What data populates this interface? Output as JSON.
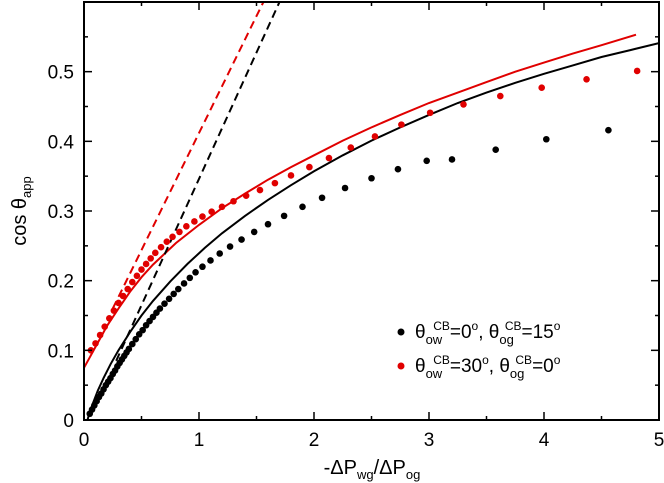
{
  "chart_data": {
    "type": "scatter",
    "xlabel": "-ΔP_wg/ΔP_og",
    "ylabel": "cos θ_app",
    "xlim": [
      0,
      5
    ],
    "ylim": [
      0,
      0.6
    ],
    "xticks": [
      0,
      1,
      2,
      3,
      4,
      5
    ],
    "yticks": [
      0,
      0.1,
      0.2,
      0.3,
      0.4,
      0.5
    ],
    "xtick_labels": [
      "0",
      "1",
      "2",
      "3",
      "4",
      "5"
    ],
    "ytick_labels": [
      "0",
      "0.1",
      "0.2",
      "0.3",
      "0.4",
      "0.5"
    ],
    "grid": false,
    "legend_position": "bottom-right",
    "series": [
      {
        "name": "θ_ow^CB=0°, θ_og^CB=15°",
        "kind": "points",
        "color": "#000000",
        "x": [
          0.05,
          0.07,
          0.09,
          0.11,
          0.13,
          0.15,
          0.17,
          0.19,
          0.21,
          0.23,
          0.25,
          0.27,
          0.29,
          0.31,
          0.33,
          0.35,
          0.37,
          0.39,
          0.42,
          0.45,
          0.48,
          0.51,
          0.54,
          0.57,
          0.6,
          0.63,
          0.66,
          0.7,
          0.74,
          0.78,
          0.82,
          0.87,
          0.92,
          0.97,
          1.03,
          1.1,
          1.18,
          1.27,
          1.37,
          1.48,
          1.6,
          1.74,
          1.9,
          2.07,
          2.27,
          2.5,
          2.73,
          2.98,
          3.2,
          3.58,
          4.02,
          4.56
        ],
        "y": [
          0.009,
          0.015,
          0.021,
          0.027,
          0.033,
          0.038,
          0.044,
          0.05,
          0.055,
          0.06,
          0.066,
          0.071,
          0.077,
          0.082,
          0.087,
          0.092,
          0.097,
          0.102,
          0.109,
          0.116,
          0.123,
          0.129,
          0.136,
          0.142,
          0.148,
          0.154,
          0.16,
          0.167,
          0.174,
          0.181,
          0.188,
          0.196,
          0.204,
          0.212,
          0.22,
          0.229,
          0.239,
          0.249,
          0.259,
          0.27,
          0.281,
          0.293,
          0.306,
          0.319,
          0.333,
          0.347,
          0.36,
          0.372,
          0.374,
          0.388,
          0.403,
          0.416
        ]
      },
      {
        "name": "θ_ow^CB=30°, θ_og^CB=0°",
        "kind": "points",
        "color": "#e00000",
        "x": [
          0.06,
          0.1,
          0.14,
          0.18,
          0.22,
          0.26,
          0.3,
          0.34,
          0.38,
          0.42,
          0.46,
          0.5,
          0.54,
          0.58,
          0.62,
          0.67,
          0.72,
          0.77,
          0.83,
          0.89,
          0.96,
          1.03,
          1.11,
          1.2,
          1.3,
          1.41,
          1.53,
          1.66,
          1.8,
          1.96,
          2.13,
          2.32,
          2.53,
          2.76,
          3.01,
          3.3,
          3.62,
          3.98,
          4.37,
          4.81
        ],
        "y": [
          0.1,
          0.11,
          0.122,
          0.134,
          0.146,
          0.157,
          0.168,
          0.178,
          0.188,
          0.198,
          0.207,
          0.216,
          0.224,
          0.232,
          0.24,
          0.248,
          0.256,
          0.263,
          0.27,
          0.278,
          0.285,
          0.292,
          0.299,
          0.306,
          0.314,
          0.322,
          0.33,
          0.34,
          0.351,
          0.363,
          0.376,
          0.391,
          0.407,
          0.424,
          0.441,
          0.453,
          0.465,
          0.477,
          0.489,
          0.501
        ]
      },
      {
        "kind": "solid-line",
        "color": "#000000",
        "x": [
          0.03,
          0.05,
          0.08,
          0.12,
          0.17,
          0.23,
          0.3,
          0.4,
          0.5,
          0.6,
          0.75,
          0.9,
          1.05,
          1.2,
          1.4,
          1.6,
          1.8,
          2.0,
          2.25,
          2.5,
          2.75,
          3.0,
          3.25,
          3.5,
          3.75,
          4.0,
          4.25,
          4.5,
          4.75,
          5.0
        ],
        "y": [
          0.0,
          0.012,
          0.025,
          0.042,
          0.06,
          0.08,
          0.1,
          0.126,
          0.15,
          0.171,
          0.199,
          0.224,
          0.247,
          0.268,
          0.293,
          0.316,
          0.337,
          0.357,
          0.38,
          0.401,
          0.42,
          0.438,
          0.455,
          0.47,
          0.484,
          0.497,
          0.509,
          0.521,
          0.531,
          0.541
        ]
      },
      {
        "kind": "solid-line",
        "color": "#e00000",
        "x": [
          0.0,
          0.05,
          0.1,
          0.15,
          0.2,
          0.3,
          0.4,
          0.5,
          0.6,
          0.8,
          1.0,
          1.2,
          1.4,
          1.6,
          1.8,
          2.0,
          2.25,
          2.5,
          2.75,
          3.0,
          3.25,
          3.5,
          3.75,
          4.0,
          4.25,
          4.5,
          4.8
        ],
        "y": [
          0.075,
          0.09,
          0.105,
          0.12,
          0.135,
          0.16,
          0.184,
          0.205,
          0.223,
          0.254,
          0.28,
          0.304,
          0.325,
          0.345,
          0.363,
          0.38,
          0.401,
          0.42,
          0.438,
          0.455,
          0.47,
          0.485,
          0.5,
          0.513,
          0.526,
          0.538,
          0.553
        ]
      },
      {
        "kind": "dashed-line",
        "color": "#000000",
        "x": [
          0.28,
          1.7
        ],
        "y": [
          0.085,
          0.6
        ]
      },
      {
        "kind": "dashed-line",
        "color": "#e00000",
        "x": [
          0.25,
          1.56
        ],
        "y": [
          0.16,
          0.6
        ]
      }
    ],
    "legend": [
      {
        "color": "#000000",
        "theta": "θ",
        "sub1": "ow",
        "sup1": "CB",
        "val1": "=0",
        "deg": "o",
        "sep": ", ",
        "sub2": "og",
        "sup2": "CB",
        "val2": "=15"
      },
      {
        "color": "#e00000",
        "theta": "θ",
        "sub1": "ow",
        "sup1": "CB",
        "val1": "=30",
        "deg": "o",
        "sep": ", ",
        "sub2": "og",
        "sup2": "CB",
        "val2": "=0"
      }
    ]
  }
}
